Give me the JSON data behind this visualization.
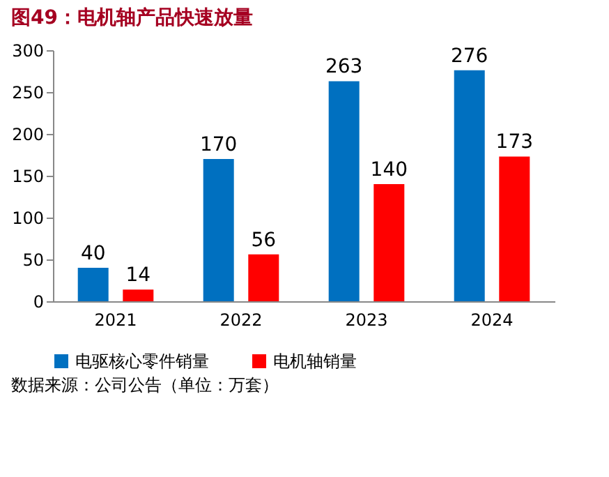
{
  "chart_data": {
    "type": "bar",
    "title": "图49：电机轴产品快速放量",
    "categories": [
      "2021",
      "2022",
      "2023",
      "2024"
    ],
    "series": [
      {
        "name": "电驱核心零件销量",
        "color": "#0070c0",
        "values": [
          40,
          170,
          263,
          276
        ]
      },
      {
        "name": "电机轴销量",
        "color": "#ff0000",
        "values": [
          14,
          56,
          140,
          173
        ]
      }
    ],
    "ylim": [
      0,
      300
    ],
    "yticks": [
      0,
      50,
      100,
      150,
      200,
      250,
      300
    ],
    "data_labels": true,
    "legend": "bottom",
    "grid": false,
    "annotations": [
      "数据来源：公司公告（单位：万套）"
    ]
  }
}
